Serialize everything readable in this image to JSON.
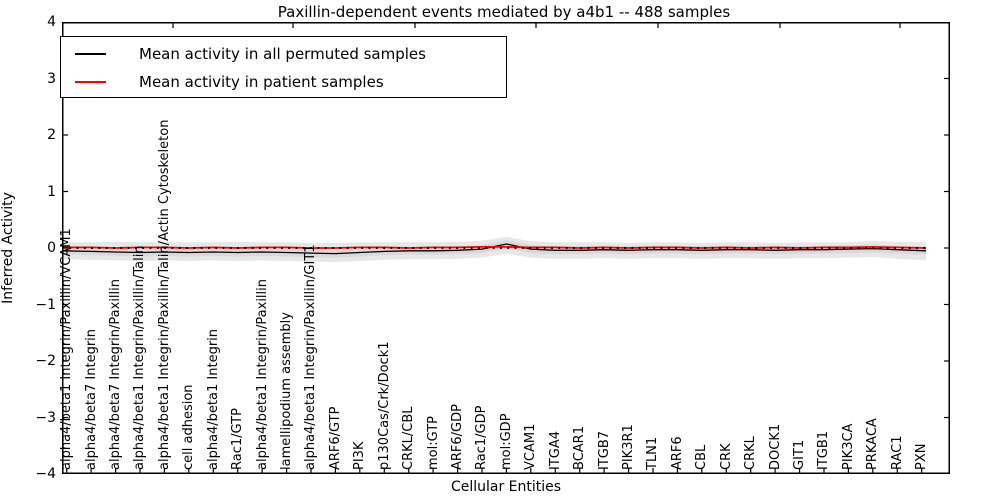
{
  "figure": {
    "title": "Paxillin-dependent events mediated by a4b1 -- 488 samples",
    "xlabel": "Cellular Entities",
    "ylabel": "Inferred Activity"
  },
  "legend": {
    "entries": [
      {
        "label": "Mean activity in all permuted samples",
        "color": "#000000"
      },
      {
        "label": "Mean activity in patient samples",
        "color": "#ff0000"
      }
    ]
  },
  "chart_data": {
    "type": "line",
    "title": "Paxillin-dependent events mediated by a4b1 -- 488 samples",
    "xlabel": "Cellular Entities",
    "ylabel": "Inferred Activity",
    "ylim": [
      -4,
      4
    ],
    "yticks": [
      4,
      3,
      2,
      1,
      0,
      -1,
      -2,
      -3,
      -4
    ],
    "grid": false,
    "legend_position": "upper left",
    "categories": [
      "alpha4/beta1 Integrin/Paxillin/VCAM1",
      "alpha4/beta7 Integrin",
      "alpha4/beta7 Integrin/Paxillin",
      "alpha4/beta1 Integrin/Paxillin/Talin",
      "alpha4/beta1 Integrin/Paxillin/Talin/Actin Cytoskeleton",
      "cell adhesion",
      "alpha4/beta1 Integrin",
      "Rac1/GTP",
      "alpha4/beta1 Integrin/Paxillin",
      "lamellipodium assembly",
      "alpha4/beta1 Integrin/Paxillin/GIT1",
      "ARF6/GTP",
      "PI3K",
      "p130Cas/Crk/Dock1",
      "CRKL/CBL",
      "mol:GTP",
      "ARF6/GDP",
      "Rac1/GDP",
      "mol:GDP",
      "VCAM1",
      "ITGA4",
      "BCAR1",
      "ITGB7",
      "PIK3R1",
      "TLN1",
      "ARF6",
      "CBL",
      "CRK",
      "CRKL",
      "DOCK1",
      "GIT1",
      "ITGB1",
      "PIK3CA",
      "PRKACA",
      "RAC1",
      "PXN"
    ],
    "series": [
      {
        "name": "Mean activity in all permuted samples",
        "color": "#000000",
        "style": "solid",
        "values": [
          -0.05,
          -0.06,
          -0.07,
          -0.08,
          -0.07,
          -0.08,
          -0.07,
          -0.08,
          -0.07,
          -0.08,
          -0.09,
          -0.1,
          -0.08,
          -0.06,
          -0.05,
          -0.05,
          -0.04,
          -0.02,
          0.07,
          -0.02,
          -0.04,
          -0.04,
          -0.03,
          -0.04,
          -0.03,
          -0.03,
          -0.04,
          -0.03,
          -0.03,
          -0.04,
          -0.03,
          -0.03,
          -0.02,
          -0.01,
          -0.03,
          -0.05
        ]
      },
      {
        "name": "Mean activity in patient samples",
        "color": "#ff0000",
        "style": "solid",
        "values": [
          0.01,
          0.01,
          0.0,
          0.01,
          0.01,
          0.0,
          0.01,
          0.0,
          0.01,
          0.01,
          0.0,
          0.0,
          0.01,
          0.01,
          0.0,
          0.01,
          0.01,
          0.02,
          0.02,
          0.01,
          0.01,
          0.0,
          0.01,
          0.0,
          0.01,
          0.01,
          0.0,
          0.01,
          0.0,
          0.01,
          0.0,
          0.01,
          0.01,
          0.02,
          0.01,
          0.0
        ]
      }
    ],
    "reference_line": {
      "y": 0,
      "style": "dotted",
      "color": "#000000"
    },
    "band": {
      "outer_color": "#e7e7e7",
      "inner_color": "#d9d9d9",
      "outer_top": [
        0.1,
        0.1,
        0.11,
        0.1,
        0.11,
        0.1,
        0.1,
        0.11,
        0.1,
        0.1,
        0.09,
        0.09,
        0.1,
        0.1,
        0.1,
        0.1,
        0.11,
        0.13,
        0.2,
        0.12,
        0.1,
        0.1,
        0.1,
        0.09,
        0.1,
        0.1,
        0.09,
        0.1,
        0.1,
        0.09,
        0.1,
        0.1,
        0.1,
        0.13,
        0.11,
        0.1
      ],
      "outer_bottom": [
        -0.2,
        -0.21,
        -0.22,
        -0.23,
        -0.22,
        -0.23,
        -0.22,
        -0.23,
        -0.22,
        -0.23,
        -0.24,
        -0.25,
        -0.23,
        -0.21,
        -0.2,
        -0.2,
        -0.19,
        -0.17,
        -0.1,
        -0.17,
        -0.19,
        -0.19,
        -0.18,
        -0.19,
        -0.18,
        -0.18,
        -0.19,
        -0.18,
        -0.18,
        -0.19,
        -0.18,
        -0.18,
        -0.17,
        -0.16,
        -0.19,
        -0.22
      ],
      "inner_top": [
        0.02,
        0.01,
        0.0,
        -0.01,
        0.0,
        -0.01,
        0.0,
        -0.01,
        0.0,
        -0.01,
        -0.02,
        -0.03,
        -0.01,
        0.01,
        0.02,
        0.02,
        0.03,
        0.05,
        0.14,
        0.05,
        0.03,
        0.03,
        0.04,
        0.03,
        0.04,
        0.04,
        0.03,
        0.04,
        0.04,
        0.03,
        0.04,
        0.04,
        0.05,
        0.06,
        0.04,
        0.02
      ],
      "inner_bottom": [
        -0.12,
        -0.13,
        -0.14,
        -0.15,
        -0.14,
        -0.15,
        -0.14,
        -0.15,
        -0.14,
        -0.15,
        -0.16,
        -0.17,
        -0.15,
        -0.13,
        -0.12,
        -0.12,
        -0.11,
        -0.09,
        0.0,
        -0.09,
        -0.11,
        -0.11,
        -0.1,
        -0.11,
        -0.1,
        -0.1,
        -0.11,
        -0.1,
        -0.1,
        -0.11,
        -0.1,
        -0.1,
        -0.09,
        -0.08,
        -0.1,
        -0.12
      ]
    }
  }
}
